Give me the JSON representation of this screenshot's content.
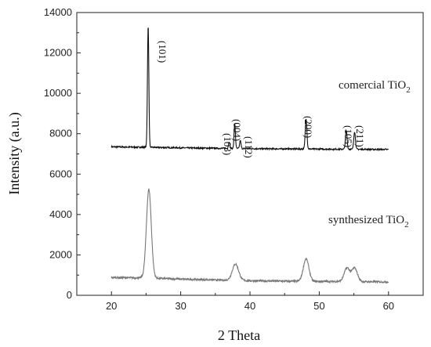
{
  "chart_data": {
    "type": "line",
    "xlabel": "2 Theta",
    "ylabel": "Intensity (a.u.)",
    "xlim": [
      15,
      65
    ],
    "ylim": [
      0,
      14000
    ],
    "x_ticks": [
      "20",
      "30",
      "40",
      "50",
      "60"
    ],
    "y_ticks": [
      "0",
      "2000",
      "4000",
      "6000",
      "8000",
      "10000",
      "12000",
      "14000"
    ],
    "x_tick_values": [
      20,
      30,
      40,
      50,
      60
    ],
    "y_tick_values": [
      0,
      2000,
      4000,
      6000,
      8000,
      10000,
      12000,
      14000
    ],
    "grid": false,
    "series": [
      {
        "label_text": "comercial TiO",
        "label_sub": "2",
        "color": "#111111",
        "baseline": [
          [
            20,
            7350
          ],
          [
            25,
            7330
          ],
          [
            30,
            7300
          ],
          [
            35,
            7280
          ],
          [
            40,
            7260
          ],
          [
            45,
            7250
          ],
          [
            50,
            7240
          ],
          [
            55,
            7230
          ],
          [
            60,
            7220
          ]
        ],
        "peaks": [
          {
            "x": 25.3,
            "y": 13350,
            "w": 0.1
          },
          {
            "x": 37.0,
            "y": 7600,
            "w": 0.1
          },
          {
            "x": 37.8,
            "y": 8480,
            "w": 0.1
          },
          {
            "x": 38.6,
            "y": 7650,
            "w": 0.1
          },
          {
            "x": 48.1,
            "y": 8750,
            "w": 0.12
          },
          {
            "x": 53.9,
            "y": 8150,
            "w": 0.12
          },
          {
            "x": 55.1,
            "y": 8100,
            "w": 0.12
          }
        ],
        "noise": 35
      },
      {
        "label_text": "synthesized TiO",
        "label_sub": "2",
        "color": "#777777",
        "baseline": [
          [
            20,
            880
          ],
          [
            25,
            860
          ],
          [
            30,
            800
          ],
          [
            35,
            760
          ],
          [
            40,
            720
          ],
          [
            45,
            700
          ],
          [
            50,
            690
          ],
          [
            55,
            680
          ],
          [
            60,
            660
          ]
        ],
        "peaks": [
          {
            "x": 25.4,
            "y": 5250,
            "w": 0.35
          },
          {
            "x": 37.9,
            "y": 1550,
            "w": 0.45
          },
          {
            "x": 48.1,
            "y": 1800,
            "w": 0.4
          },
          {
            "x": 54.0,
            "y": 1350,
            "w": 0.4
          },
          {
            "x": 55.1,
            "y": 1350,
            "w": 0.4
          },
          {
            "x": 62.7,
            "y": 900,
            "w": 0.4
          }
        ],
        "noise": 45
      }
    ],
    "peak_annotations": [
      "(101)",
      "(103)",
      "(004)",
      "(112)",
      "(200)",
      "(105)",
      "(211)"
    ]
  }
}
